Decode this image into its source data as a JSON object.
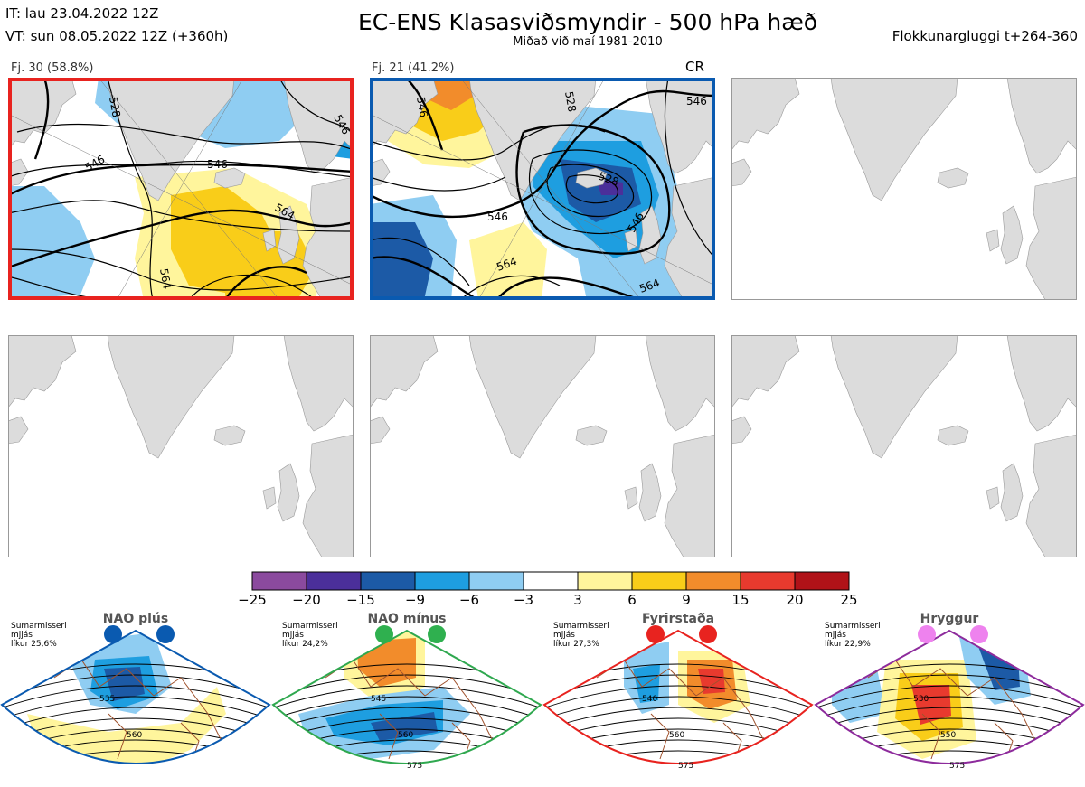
{
  "header": {
    "init": "IT: lau 23.04.2022 12Z",
    "valid": "VT: sun 08.05.2022 12Z  (+360h)",
    "title": "EC-ENS Klasasviðsmyndir - 500 hPa hæð",
    "subtitle": "Miðað við maí 1981-2010",
    "window": "Flokkunargluggi t+264-360"
  },
  "clusters": [
    {
      "label": "Fj. 30 (58.8%)",
      "frame_color": "#e8231f",
      "contour_labels": [
        "528",
        "546",
        "546",
        "564",
        "564",
        "546"
      ]
    },
    {
      "label": "Fj. 21 (41.2%)",
      "frame_color": "#0a5ab0",
      "tag": "CR",
      "contour_labels": [
        "546",
        "528",
        "528",
        "546",
        "546",
        "546",
        "564",
        "564"
      ]
    }
  ],
  "colorbar": {
    "ticks": [
      "−25",
      "−20",
      "−15",
      "−9",
      "−6",
      "−3",
      "3",
      "6",
      "9",
      "15",
      "20",
      "25"
    ],
    "colors": [
      "#8b4a9e",
      "#4b2f9a",
      "#1c5aa6",
      "#1e9ee0",
      "#8fcdf2",
      "#ffffff",
      "#fff59c",
      "#f9cd19",
      "#f28c2b",
      "#e83a2e",
      "#b01218"
    ]
  },
  "regimes": [
    {
      "name": "NAO plús",
      "season": [
        "Sumarmisseri",
        "mjjás",
        "líkur 25,6%"
      ],
      "frame_color": "#0a5ab0",
      "dot_color": "#0a5ab0",
      "contour_labels": [
        "535",
        "560"
      ]
    },
    {
      "name": "NAO mínus",
      "season": [
        "Sumarmisseri",
        "mjjás",
        "líkur 24,2%"
      ],
      "frame_color": "#2fa84f",
      "dot_color": "#2fb04f",
      "contour_labels": [
        "545",
        "560",
        "575"
      ]
    },
    {
      "name": "Fyrirstaða",
      "season": [
        "Sumarmisseri",
        "mjjás",
        "líkur 27,3%"
      ],
      "frame_color": "#e8231f",
      "dot_color": "#e8231f",
      "contour_labels": [
        "540",
        "560",
        "575"
      ]
    },
    {
      "name": "Hryggur",
      "season": [
        "Sumarmisseri",
        "mjjás",
        "líkur 22,9%"
      ],
      "frame_color": "#8d2b9c",
      "dot_color": "#ee82ee",
      "contour_labels": [
        "530",
        "550",
        "575"
      ]
    }
  ]
}
